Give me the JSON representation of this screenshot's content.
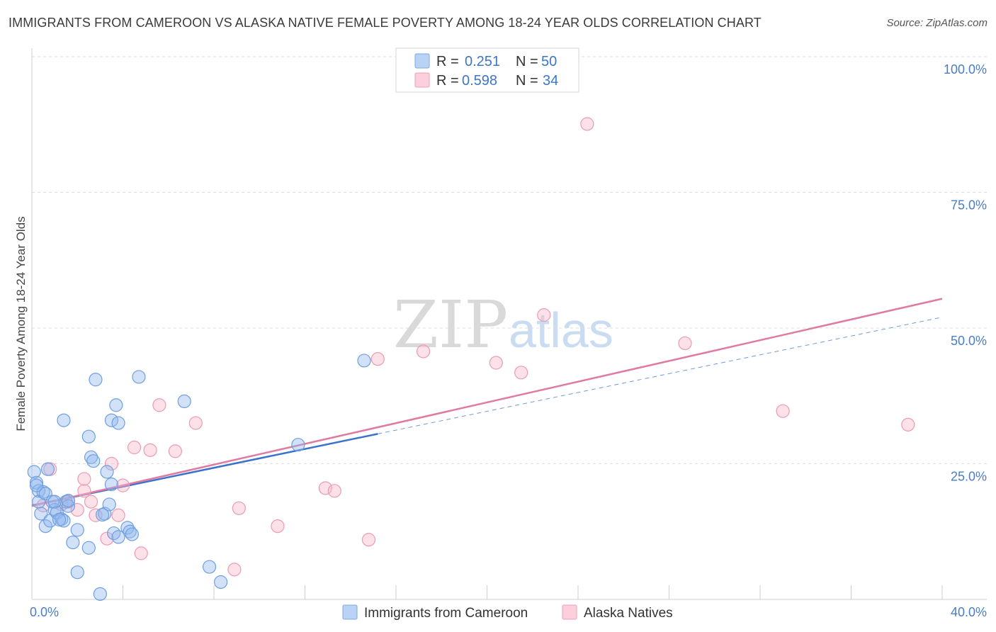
{
  "header": {
    "title": "IMMIGRANTS FROM CAMEROON VS ALASKA NATIVE FEMALE POVERTY AMONG 18-24 YEAR OLDS CORRELATION CHART",
    "source": "Source: ZipAtlas.com"
  },
  "watermark": {
    "zip": "ZIP",
    "atlas": "atlas"
  },
  "legend": {
    "rows": [
      {
        "r_label": "R =",
        "r_value": "0.251",
        "n_label": "N =",
        "n_value": "50"
      },
      {
        "r_label": "R =",
        "r_value": "0.598",
        "n_label": "N =",
        "n_value": "34"
      }
    ]
  },
  "chart_data": {
    "type": "scatter",
    "title": "IMMIGRANTS FROM CAMEROON VS ALASKA NATIVE FEMALE POVERTY AMONG 18-24 YEAR OLDS CORRELATION CHART",
    "xlabel": "",
    "ylabel": "Female Poverty Among 18-24 Year Olds",
    "xlim": [
      0,
      40
    ],
    "ylim": [
      0,
      100
    ],
    "x_tick_labels": [
      "0.0%",
      "40.0%"
    ],
    "y_tick_labels": [
      "25.0%",
      "50.0%",
      "75.0%",
      "100.0%"
    ],
    "y_ticks": [
      25,
      50,
      75,
      100
    ],
    "grid": true,
    "legend_position": "top-center",
    "series": [
      {
        "name": "Immigrants from Cameroon",
        "color": "#8fb8ee",
        "stroke": "#6f9fdf",
        "r": 0.251,
        "n": 50,
        "trend": {
          "x0": 0,
          "y0": 17.3,
          "x1": 15.2,
          "y1": 30.5,
          "style": "solid",
          "color": "#3a72cc"
        },
        "trend_ext": {
          "x0": 15.2,
          "y0": 30.5,
          "x1": 40,
          "y1": 52.0,
          "style": "dashed",
          "color": "#6e9ad8"
        },
        "points": [
          [
            0.1,
            23.5
          ],
          [
            0.2,
            21.5
          ],
          [
            0.3,
            20.0
          ],
          [
            0.3,
            18.0
          ],
          [
            0.5,
            19.8
          ],
          [
            0.6,
            19.5
          ],
          [
            0.4,
            15.8
          ],
          [
            0.6,
            13.5
          ],
          [
            0.8,
            14.5
          ],
          [
            0.9,
            18.0
          ],
          [
            1.0,
            16.5
          ],
          [
            1.1,
            16.0
          ],
          [
            1.3,
            14.8
          ],
          [
            1.4,
            14.5
          ],
          [
            1.5,
            18.0
          ],
          [
            1.6,
            17.2
          ],
          [
            1.6,
            18.2
          ],
          [
            0.7,
            24.0
          ],
          [
            1.4,
            33.0
          ],
          [
            1.8,
            10.5
          ],
          [
            2.0,
            12.8
          ],
          [
            2.0,
            5.0
          ],
          [
            2.5,
            9.5
          ],
          [
            2.5,
            30.0
          ],
          [
            2.6,
            26.2
          ],
          [
            2.7,
            25.5
          ],
          [
            2.8,
            40.5
          ],
          [
            3.0,
            1.0
          ],
          [
            3.2,
            15.8
          ],
          [
            3.3,
            23.5
          ],
          [
            3.4,
            17.5
          ],
          [
            3.5,
            33.0
          ],
          [
            3.5,
            21.2
          ],
          [
            3.6,
            12.2
          ],
          [
            3.7,
            35.8
          ],
          [
            3.8,
            32.5
          ],
          [
            3.8,
            11.5
          ],
          [
            4.2,
            13.2
          ],
          [
            4.3,
            12.5
          ],
          [
            4.4,
            12.0
          ],
          [
            4.7,
            41.0
          ],
          [
            6.7,
            36.5
          ],
          [
            7.8,
            6.0
          ],
          [
            8.3,
            3.2
          ],
          [
            11.7,
            28.5
          ],
          [
            14.6,
            44.0
          ],
          [
            0.2,
            21.0
          ],
          [
            1.2,
            14.7
          ],
          [
            3.1,
            15.6
          ],
          [
            1.0,
            18.0
          ]
        ]
      },
      {
        "name": "Alaska Natives",
        "color": "#f7b8cb",
        "stroke": "#eb9ab4",
        "r": 0.598,
        "n": 34,
        "trend": {
          "x0": 0,
          "y0": 17.2,
          "x1": 40,
          "y1": 55.4,
          "style": "solid",
          "color": "#e07aa0"
        },
        "points": [
          [
            0.8,
            24.0
          ],
          [
            1.6,
            18.0
          ],
          [
            2.3,
            20.0
          ],
          [
            2.3,
            22.2
          ],
          [
            2.6,
            18.0
          ],
          [
            2.8,
            15.5
          ],
          [
            3.3,
            11.2
          ],
          [
            3.5,
            25.0
          ],
          [
            3.8,
            15.5
          ],
          [
            4.0,
            21.0
          ],
          [
            4.5,
            28.0
          ],
          [
            4.8,
            8.5
          ],
          [
            5.2,
            27.5
          ],
          [
            5.6,
            35.8
          ],
          [
            6.3,
            27.3
          ],
          [
            7.2,
            32.5
          ],
          [
            8.9,
            5.5
          ],
          [
            9.1,
            16.8
          ],
          [
            10.8,
            13.5
          ],
          [
            12.9,
            20.5
          ],
          [
            13.3,
            20.0
          ],
          [
            14.8,
            11.0
          ],
          [
            15.2,
            44.3
          ],
          [
            17.2,
            45.7
          ],
          [
            20.4,
            43.6
          ],
          [
            21.5,
            41.8
          ],
          [
            22.5,
            52.4
          ],
          [
            24.4,
            87.6
          ],
          [
            28.7,
            47.2
          ],
          [
            33.0,
            34.7
          ],
          [
            38.5,
            32.2
          ],
          [
            0.5,
            17.3
          ],
          [
            1.3,
            17.5
          ],
          [
            2.0,
            16.5
          ]
        ]
      }
    ]
  }
}
